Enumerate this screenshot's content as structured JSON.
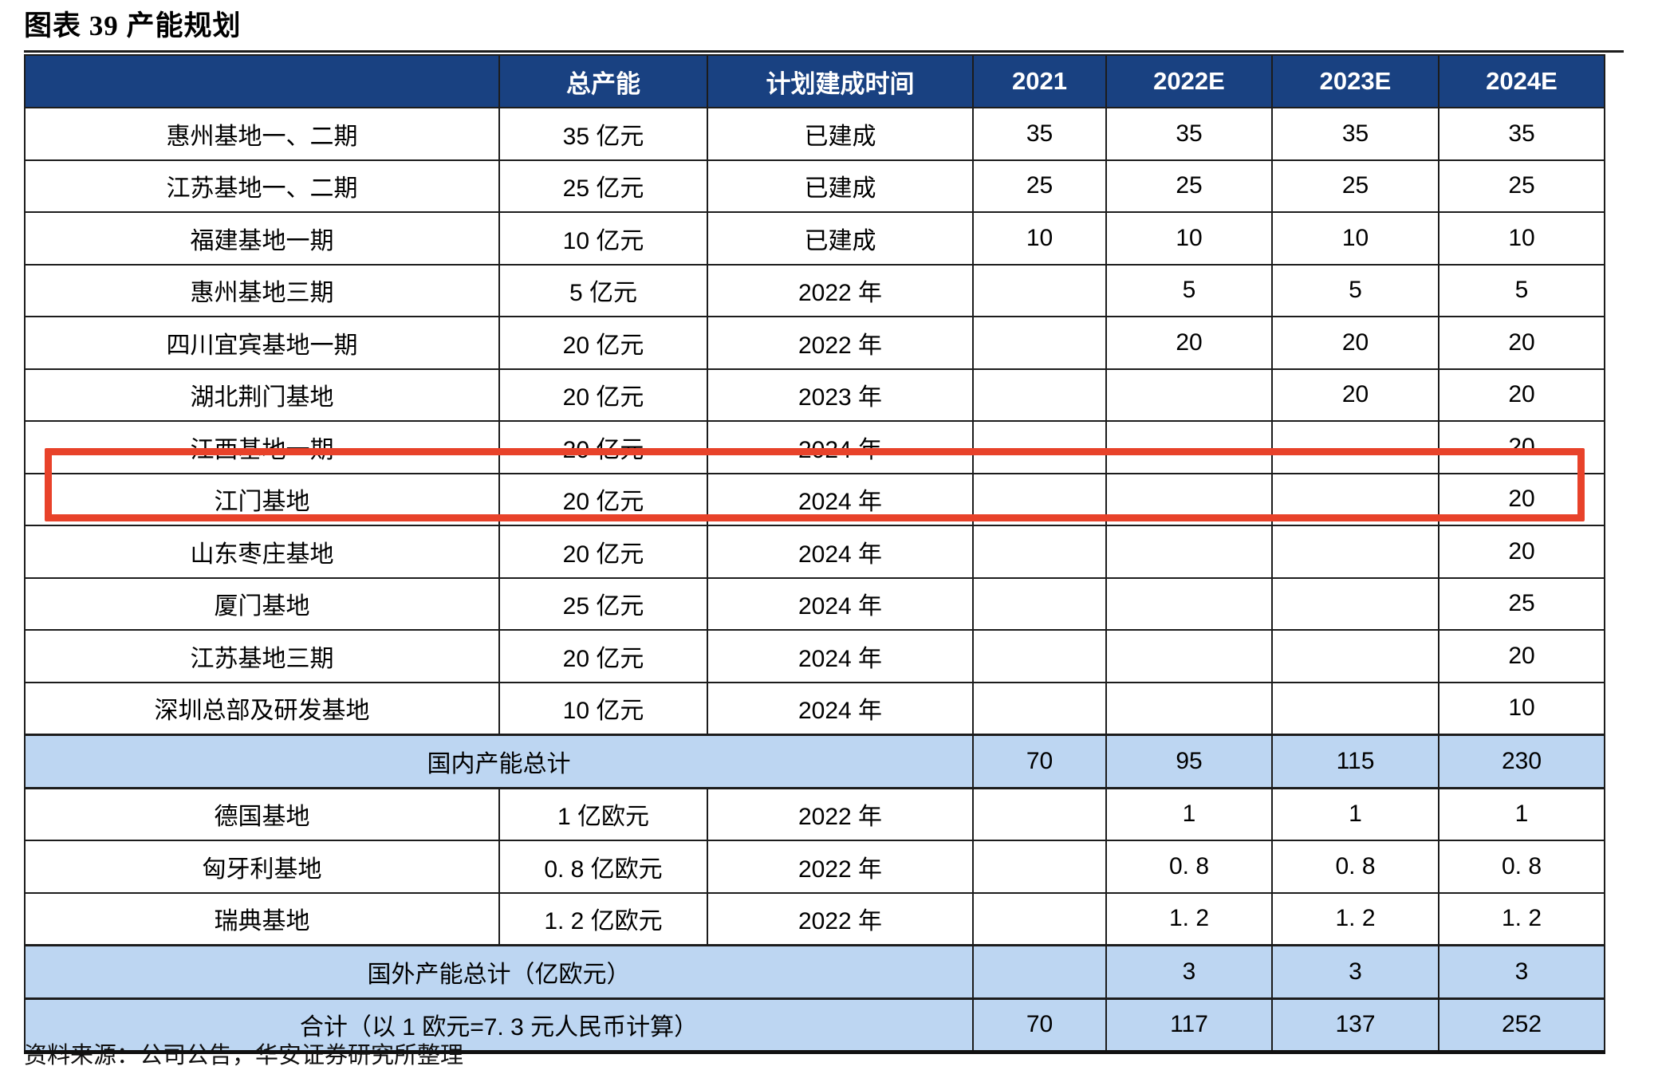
{
  "title": "图表 39 产能规划",
  "source_note": "资料来源：公司公告，华安证券研究所整理",
  "colors": {
    "header_bg": "#194181",
    "summary_bg": "#bdd6f2",
    "grid": "#1c1c1c",
    "highlight": "#e8422a"
  },
  "highlight": {
    "row_label": "江门基地"
  },
  "table": {
    "headers": [
      "",
      "总产能",
      "计划建成时间",
      "2021",
      "2022E",
      "2023E",
      "2024E"
    ],
    "rows": [
      {
        "type": "data",
        "label": "惠州基地一、二期",
        "capacity": "35 亿元",
        "time": "已建成",
        "y2021": "35",
        "y2022e": "35",
        "y2023e": "35",
        "y2024e": "35"
      },
      {
        "type": "data",
        "label": "江苏基地一、二期",
        "capacity": "25 亿元",
        "time": "已建成",
        "y2021": "25",
        "y2022e": "25",
        "y2023e": "25",
        "y2024e": "25"
      },
      {
        "type": "data",
        "label": "福建基地一期",
        "capacity": "10 亿元",
        "time": "已建成",
        "y2021": "10",
        "y2022e": "10",
        "y2023e": "10",
        "y2024e": "10"
      },
      {
        "type": "data",
        "label": "惠州基地三期",
        "capacity": "5 亿元",
        "time": "2022 年",
        "y2021": "",
        "y2022e": "5",
        "y2023e": "5",
        "y2024e": "5"
      },
      {
        "type": "data",
        "label": "四川宜宾基地一期",
        "capacity": "20 亿元",
        "time": "2022 年",
        "y2021": "",
        "y2022e": "20",
        "y2023e": "20",
        "y2024e": "20"
      },
      {
        "type": "data",
        "label": "湖北荆门基地",
        "capacity": "20 亿元",
        "time": "2023 年",
        "y2021": "",
        "y2022e": "",
        "y2023e": "20",
        "y2024e": "20"
      },
      {
        "type": "data",
        "label": "江西基地一期",
        "capacity": "20 亿元",
        "time": "2024 年",
        "y2021": "",
        "y2022e": "",
        "y2023e": "",
        "y2024e": "20"
      },
      {
        "type": "data",
        "label": "江门基地",
        "capacity": "20 亿元",
        "time": "2024 年",
        "y2021": "",
        "y2022e": "",
        "y2023e": "",
        "y2024e": "20",
        "highlight": true
      },
      {
        "type": "data",
        "label": "山东枣庄基地",
        "capacity": "20 亿元",
        "time": "2024 年",
        "y2021": "",
        "y2022e": "",
        "y2023e": "",
        "y2024e": "20"
      },
      {
        "type": "data",
        "label": "厦门基地",
        "capacity": "25 亿元",
        "time": "2024 年",
        "y2021": "",
        "y2022e": "",
        "y2023e": "",
        "y2024e": "25"
      },
      {
        "type": "data",
        "label": "江苏基地三期",
        "capacity": "20 亿元",
        "time": "2024 年",
        "y2021": "",
        "y2022e": "",
        "y2023e": "",
        "y2024e": "20"
      },
      {
        "type": "data",
        "label": "深圳总部及研发基地",
        "capacity": "10 亿元",
        "time": "2024 年",
        "y2021": "",
        "y2022e": "",
        "y2023e": "",
        "y2024e": "10"
      },
      {
        "type": "summary",
        "label": "国内产能总计",
        "y2021": "70",
        "y2022e": "95",
        "y2023e": "115",
        "y2024e": "230"
      },
      {
        "type": "data",
        "label": "德国基地",
        "capacity": "1 亿欧元",
        "time": "2022 年",
        "y2021": "",
        "y2022e": "1",
        "y2023e": "1",
        "y2024e": "1"
      },
      {
        "type": "data",
        "label": "匈牙利基地",
        "capacity": "0. 8 亿欧元",
        "time": "2022 年",
        "y2021": "",
        "y2022e": "0. 8",
        "y2023e": "0. 8",
        "y2024e": "0. 8"
      },
      {
        "type": "data",
        "label": "瑞典基地",
        "capacity": "1. 2 亿欧元",
        "time": "2022 年",
        "y2021": "",
        "y2022e": "1. 2",
        "y2023e": "1. 2",
        "y2024e": "1. 2"
      },
      {
        "type": "summary",
        "label": "国外产能总计（亿欧元）",
        "y2021": "",
        "y2022e": "3",
        "y2023e": "3",
        "y2024e": "3"
      },
      {
        "type": "summary",
        "label": "合计（以 1 欧元=7. 3 元人民币计算）",
        "y2021": "70",
        "y2022e": "117",
        "y2023e": "137",
        "y2024e": "252"
      }
    ]
  }
}
